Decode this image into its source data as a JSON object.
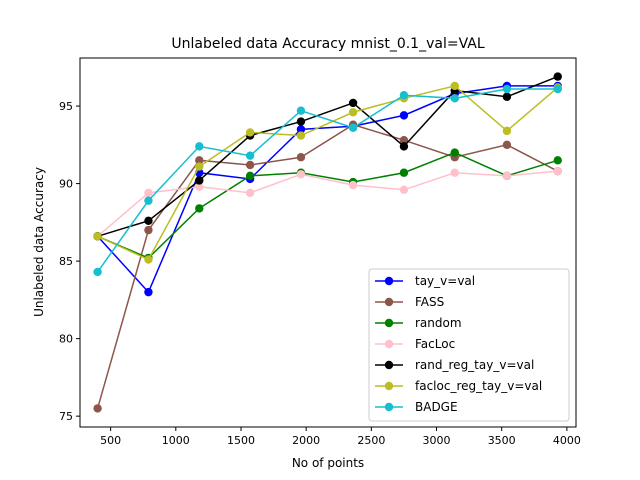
{
  "chart_data": {
    "type": "line",
    "title": "Unlabeled data Accuracy mnist_0.1_val=VAL",
    "xlabel": "No of points",
    "ylabel": "Unlabeled data Accuracy",
    "xlim": [
      265,
      4070
    ],
    "ylim": [
      74.3,
      98.1
    ],
    "xticks": [
      500,
      1000,
      1500,
      2000,
      2500,
      3000,
      3500,
      4000
    ],
    "yticks": [
      75,
      80,
      85,
      90,
      95
    ],
    "grid": false,
    "legend_position": "lower-right",
    "x": [
      400,
      790,
      1180,
      1570,
      1960,
      2360,
      2750,
      3140,
      3540,
      3930
    ],
    "series": [
      {
        "name": "tay_v=val",
        "color": "#0000ff",
        "values": [
          86.6,
          83.0,
          90.7,
          90.3,
          93.5,
          93.7,
          94.4,
          95.8,
          96.3,
          96.3
        ]
      },
      {
        "name": "FASS",
        "color": "#8c564b",
        "values": [
          75.5,
          87.0,
          91.5,
          91.2,
          91.7,
          93.8,
          92.8,
          91.7,
          92.5,
          90.8
        ]
      },
      {
        "name": "random",
        "color": "#008000",
        "values": [
          86.6,
          85.2,
          88.4,
          90.5,
          90.7,
          90.1,
          90.7,
          92.0,
          90.5,
          91.5
        ]
      },
      {
        "name": "FacLoc",
        "color": "#ffc0cb",
        "values": [
          86.6,
          89.4,
          89.8,
          89.4,
          90.6,
          89.9,
          89.6,
          90.7,
          90.5,
          90.8
        ]
      },
      {
        "name": "rand_reg_tay_v=val",
        "color": "#000000",
        "values": [
          86.6,
          87.6,
          90.2,
          93.1,
          94.0,
          95.2,
          92.4,
          96.0,
          95.6,
          96.9
        ]
      },
      {
        "name": "facloc_reg_tay_v=val",
        "color": "#bcbd22",
        "values": [
          86.6,
          85.1,
          91.1,
          93.3,
          93.1,
          94.6,
          95.5,
          96.3,
          93.4,
          96.2
        ]
      },
      {
        "name": "BADGE",
        "color": "#17becf",
        "values": [
          84.3,
          88.9,
          92.4,
          91.8,
          94.7,
          93.6,
          95.7,
          95.5,
          96.1,
          96.1
        ]
      }
    ]
  }
}
